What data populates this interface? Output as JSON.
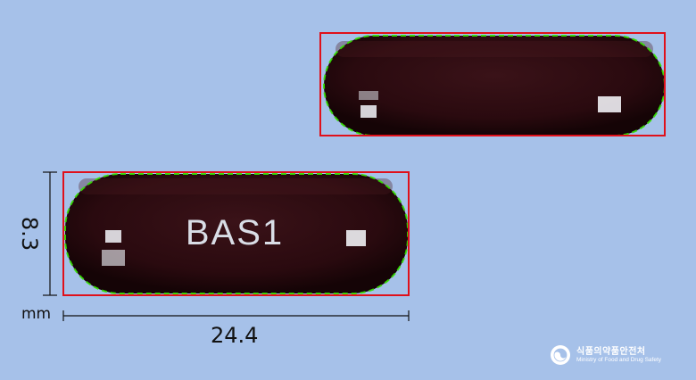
{
  "image": {
    "imprint": "BAS1",
    "dimensions": {
      "width_value": "24.4",
      "height_value": "8.3",
      "unit": "mm"
    },
    "logo": {
      "name_ko": "식품의약품안전처",
      "name_en": "Ministry of Food and Drug Safety"
    },
    "colors": {
      "background": "#a6c1e9",
      "capsule": "#2a0a0f",
      "bounding_box": "#e0101a",
      "contour": "#35e000"
    }
  }
}
